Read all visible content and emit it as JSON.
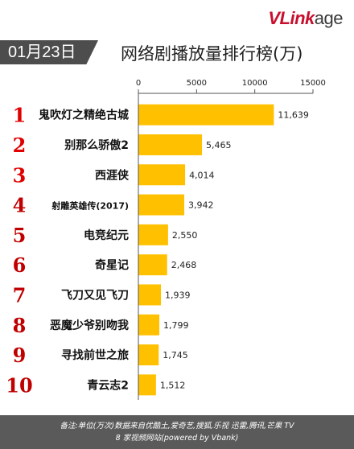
{
  "logo": {
    "part1": "VLink",
    "part2": "age"
  },
  "date": "01月23日",
  "title": "网络剧播放量排行榜(万)",
  "footer": {
    "line1": "备注:单位(万次)数据来自优酷土,爱奇艺,搜狐,乐视 迅雷,腾讯,芒果 TV",
    "line2": "8 家视频网站(powered by Vbank)"
  },
  "colors": {
    "bar": "#ffc000",
    "rank": "#c00000",
    "rank_top": "#e00000",
    "axis": "#555555"
  },
  "chart_data": {
    "type": "bar",
    "orientation": "horizontal",
    "title": "网络剧播放量排行榜(万)",
    "xlabel": "",
    "ylabel": "",
    "xlim": [
      0,
      15000
    ],
    "ticks": [
      0,
      5000,
      10000,
      15000
    ],
    "tick_labels": [
      "0",
      "5000",
      "10000",
      "15000"
    ],
    "grid": false,
    "ranks": [
      "1",
      "2",
      "3",
      "4",
      "5",
      "6",
      "7",
      "8",
      "9",
      "10"
    ],
    "categories": [
      "鬼吹灯之精绝古城",
      "别那么骄傲2",
      "西涯侠",
      "射雕英雄传(2017)",
      "电竞纪元",
      "奇星记",
      "飞刀又见飞刀",
      "恶魔少爷别吻我",
      "寻找前世之旅",
      "青云志2"
    ],
    "values": [
      11639,
      5465,
      4014,
      3942,
      2550,
      2468,
      1939,
      1799,
      1745,
      1512
    ],
    "value_labels": [
      "11,639",
      "5,465",
      "4,014",
      "3,942",
      "2,550",
      "2,468",
      "1,939",
      "1,799",
      "1,745",
      "1,512"
    ]
  }
}
